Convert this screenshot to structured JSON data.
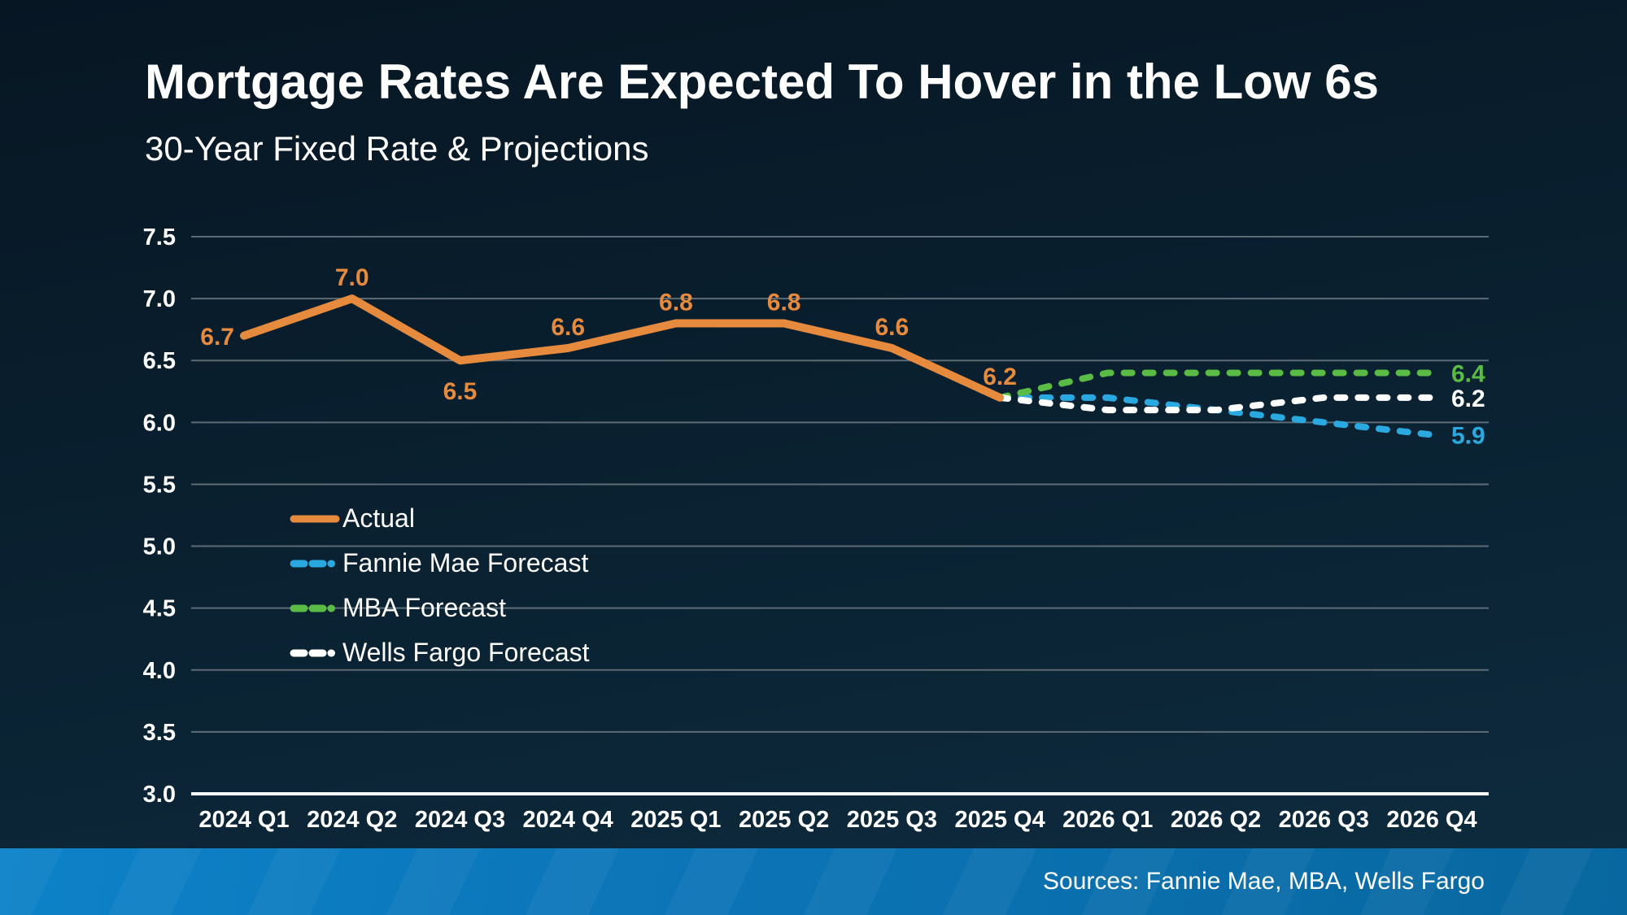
{
  "header": {
    "title": "Mortgage Rates Are Expected To Hover in the Low 6s",
    "subtitle": "30-Year Fixed Rate & Projections"
  },
  "footer": {
    "sources": "Sources: Fannie Mae, MBA, Wells Fargo"
  },
  "colors": {
    "background_top": "#071623",
    "background_bottom": "#0e2c3f",
    "gridline": "#5c6b76",
    "axis_line": "#ffffff",
    "text": "#ffffff",
    "actual": "#e68a3e",
    "fannie_mae": "#2aa9e0",
    "mba": "#5abb45",
    "wells_fargo": "#ffffff",
    "footer_bar_left": "#0d82c8",
    "footer_bar_right": "#08679f"
  },
  "chart_data": {
    "type": "line",
    "title": "30-Year Fixed Rate & Projections",
    "xlabel": "",
    "ylabel": "",
    "ylim": [
      3.0,
      7.5
    ],
    "ytick_step": 0.5,
    "ytick_labels": [
      "3.0",
      "3.5",
      "4.0",
      "4.5",
      "5.0",
      "5.5",
      "6.0",
      "6.5",
      "7.0",
      "7.5"
    ],
    "grid": true,
    "legend_position": "middle-left",
    "categories": [
      "2024 Q1",
      "2024 Q2",
      "2024 Q3",
      "2024 Q4",
      "2025 Q1",
      "2025 Q2",
      "2025 Q3",
      "2025 Q4",
      "2026 Q1",
      "2026 Q2",
      "2026 Q3",
      "2026 Q4"
    ],
    "series": [
      {
        "name": "Actual",
        "slug": "actual",
        "color": "#e68a3e",
        "style": "solid",
        "start_index": 0,
        "values": [
          6.7,
          7.0,
          6.5,
          6.6,
          6.8,
          6.8,
          6.6,
          6.2
        ],
        "point_labels": [
          {
            "text": "6.7",
            "placement": "left"
          },
          {
            "text": "7.0",
            "placement": "above"
          },
          {
            "text": "6.5",
            "placement": "below"
          },
          {
            "text": "6.6",
            "placement": "above"
          },
          {
            "text": "6.8",
            "placement": "above"
          },
          {
            "text": "6.8",
            "placement": "above"
          },
          {
            "text": "6.6",
            "placement": "above"
          },
          {
            "text": "6.2",
            "placement": "above"
          }
        ]
      },
      {
        "name": "Fannie Mae Forecast",
        "slug": "fannie-mae",
        "color": "#2aa9e0",
        "style": "dashed",
        "start_index": 7,
        "values": [
          6.2,
          6.2,
          6.1,
          6.0,
          5.9
        ],
        "end_label": "5.9"
      },
      {
        "name": "MBA Forecast",
        "slug": "mba",
        "color": "#5abb45",
        "style": "dashed",
        "start_index": 7,
        "values": [
          6.2,
          6.4,
          6.4,
          6.4,
          6.4
        ],
        "end_label": "6.4"
      },
      {
        "name": "Wells Fargo Forecast",
        "slug": "wells-fargo",
        "color": "#ffffff",
        "style": "dashed",
        "start_index": 7,
        "values": [
          6.2,
          6.1,
          6.1,
          6.2,
          6.2
        ],
        "end_label": "6.2"
      }
    ]
  }
}
